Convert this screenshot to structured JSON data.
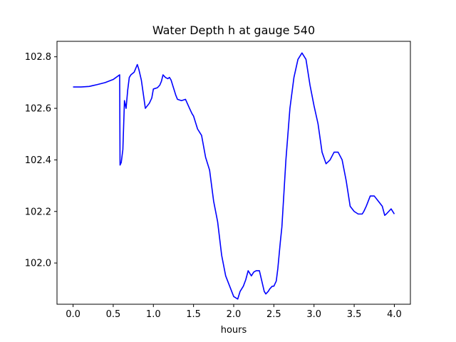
{
  "chart_data": {
    "type": "line",
    "title": "Water Depth h at gauge 540",
    "xlabel": "hours",
    "ylabel": "",
    "xlim": [
      -0.2,
      4.2
    ],
    "ylim": [
      101.84,
      102.86
    ],
    "xticks": [
      0.0,
      0.5,
      1.0,
      1.5,
      2.0,
      2.5,
      3.0,
      3.5,
      4.0
    ],
    "xtick_labels": [
      "0.0",
      "0.5",
      "1.0",
      "1.5",
      "2.0",
      "2.5",
      "3.0",
      "3.5",
      "4.0"
    ],
    "yticks": [
      102.0,
      102.2,
      102.4,
      102.6,
      102.8
    ],
    "ytick_labels": [
      "102.0",
      "102.2",
      "102.4",
      "102.6",
      "102.8"
    ],
    "grid": false,
    "series": [
      {
        "color": "#0000ff",
        "x": [
          0.0,
          0.1,
          0.2,
          0.3,
          0.4,
          0.5,
          0.58,
          0.585,
          0.6,
          0.62,
          0.64,
          0.66,
          0.68,
          0.7,
          0.72,
          0.76,
          0.8,
          0.82,
          0.85,
          0.9,
          0.95,
          0.98,
          1.0,
          1.05,
          1.08,
          1.1,
          1.12,
          1.15,
          1.18,
          1.2,
          1.22,
          1.25,
          1.28,
          1.3,
          1.35,
          1.4,
          1.45,
          1.48,
          1.5,
          1.55,
          1.6,
          1.65,
          1.7,
          1.75,
          1.8,
          1.85,
          1.9,
          1.95,
          2.0,
          2.05,
          2.08,
          2.12,
          2.15,
          2.18,
          2.2,
          2.22,
          2.25,
          2.28,
          2.32,
          2.35,
          2.38,
          2.4,
          2.43,
          2.45,
          2.48,
          2.5,
          2.53,
          2.55,
          2.58,
          2.6,
          2.65,
          2.7,
          2.75,
          2.8,
          2.85,
          2.9,
          2.95,
          3.0,
          3.05,
          3.1,
          3.15,
          3.2,
          3.25,
          3.3,
          3.35,
          3.4,
          3.45,
          3.5,
          3.55,
          3.6,
          3.62,
          3.65,
          3.7,
          3.75,
          3.8,
          3.85,
          3.88,
          3.9,
          3.93,
          3.96,
          4.0
        ],
        "y": [
          102.683,
          102.683,
          102.685,
          102.692,
          102.7,
          102.712,
          102.73,
          102.38,
          102.39,
          102.44,
          102.63,
          102.6,
          102.67,
          102.72,
          102.73,
          102.74,
          102.77,
          102.75,
          102.71,
          102.6,
          102.62,
          102.64,
          102.675,
          102.68,
          102.69,
          102.705,
          102.73,
          102.72,
          102.715,
          102.72,
          102.71,
          102.68,
          102.65,
          102.635,
          102.63,
          102.635,
          102.6,
          102.58,
          102.57,
          102.52,
          102.495,
          102.41,
          102.36,
          102.24,
          102.16,
          102.03,
          101.95,
          101.91,
          101.87,
          101.86,
          101.89,
          101.91,
          101.935,
          101.97,
          101.96,
          101.95,
          101.965,
          101.97,
          101.97,
          101.93,
          101.89,
          101.88,
          101.89,
          101.9,
          101.91,
          101.91,
          101.93,
          101.98,
          102.08,
          102.14,
          102.4,
          102.6,
          102.72,
          102.79,
          102.815,
          102.79,
          102.69,
          102.61,
          102.54,
          102.43,
          102.385,
          102.4,
          102.43,
          102.43,
          102.4,
          102.32,
          102.22,
          102.2,
          102.19,
          102.19,
          102.2,
          102.22,
          102.26,
          102.26,
          102.24,
          102.22,
          102.185,
          102.19,
          102.2,
          102.21,
          102.19
        ]
      }
    ]
  }
}
